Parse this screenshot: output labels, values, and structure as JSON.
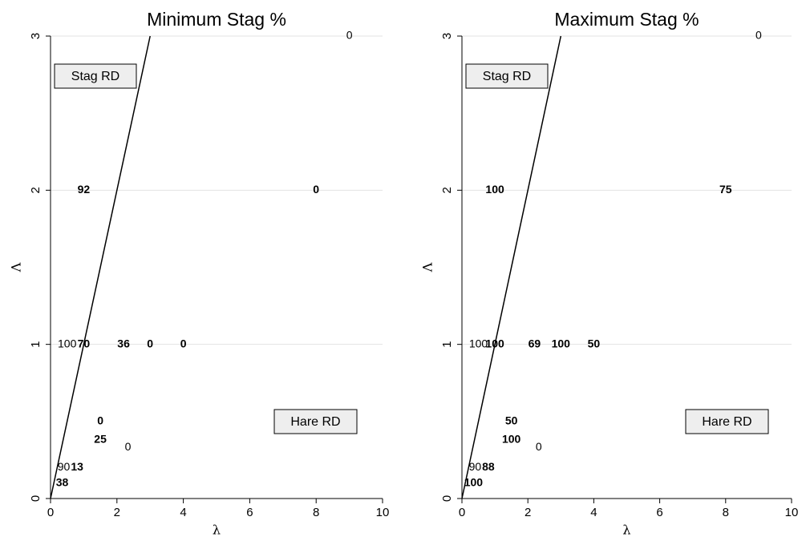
{
  "chart_data": [
    {
      "type": "text-scatter",
      "title": "Minimum Stag %",
      "x_label": "λ",
      "y_label": "Λ",
      "xlim": [
        0,
        10
      ],
      "ylim": [
        0,
        3
      ],
      "xticks": [
        0,
        2,
        4,
        6,
        8,
        10
      ],
      "yticks": [
        0,
        1,
        2,
        3
      ],
      "grid": true,
      "line": {
        "x": [
          0,
          3
        ],
        "values": [
          0,
          3
        ],
        "color": "#000000"
      },
      "annotations": [
        "Stag RD",
        "Hare RD"
      ],
      "series": [
        {
          "font_weight": "normal",
          "x": [
            9,
            0.5,
            2.33,
            0.4
          ],
          "values": [
            3,
            1,
            0.33,
            0.2
          ],
          "labels": [
            0,
            100,
            0,
            90
          ]
        },
        {
          "font_weight": "bold",
          "x": [
            1,
            8,
            1,
            2.2,
            3,
            4,
            1.5,
            1.5,
            0.8,
            0.35
          ],
          "values": [
            2,
            2,
            1,
            1,
            1,
            1,
            0.5,
            0.38,
            0.2,
            0.1
          ],
          "labels": [
            92,
            0,
            70,
            36,
            0,
            0,
            0,
            25,
            13,
            38
          ]
        }
      ]
    },
    {
      "type": "text-scatter",
      "title": "Maximum Stag %",
      "x_label": "λ",
      "y_label": "Λ",
      "xlim": [
        0,
        10
      ],
      "ylim": [
        0,
        3
      ],
      "xticks": [
        0,
        2,
        4,
        6,
        8,
        10
      ],
      "yticks": [
        0,
        1,
        2,
        3
      ],
      "grid": true,
      "line": {
        "x": [
          0,
          3
        ],
        "values": [
          0,
          3
        ],
        "color": "#000000"
      },
      "annotations": [
        "Stag RD",
        "Hare RD"
      ],
      "series": [
        {
          "font_weight": "normal",
          "x": [
            9,
            0.5,
            2.33,
            0.4
          ],
          "values": [
            3,
            1,
            0.33,
            0.2
          ],
          "labels": [
            0,
            100,
            0,
            90
          ]
        },
        {
          "font_weight": "bold",
          "x": [
            1,
            8,
            1,
            2.2,
            3,
            4,
            1.5,
            1.5,
            0.8,
            0.35
          ],
          "values": [
            2,
            2,
            1,
            1,
            1,
            1,
            0.5,
            0.38,
            0.2,
            0.1
          ],
          "labels": [
            100,
            75,
            100,
            69,
            100,
            50,
            50,
            100,
            88,
            100
          ]
        }
      ]
    }
  ]
}
